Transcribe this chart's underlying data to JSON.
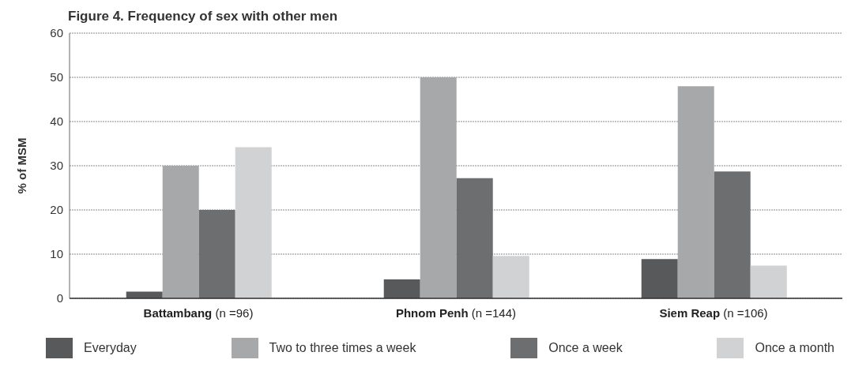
{
  "chart_data": {
    "type": "bar",
    "title": "Figure 4. Frequency of sex with other men",
    "ylabel": "% of MSM",
    "categories": [
      "Battambang (n =96)",
      "Phnom Penh (n =144)",
      "Siem Reap (n =106)"
    ],
    "series": [
      {
        "name": "Everyday",
        "color": "#58595b",
        "values": [
          1.5,
          4.3,
          8.9
        ]
      },
      {
        "name": "Two to three times a week",
        "color": "#a7a8aa",
        "values": [
          30,
          50,
          48
        ]
      },
      {
        "name": "Once a week",
        "color": "#6d6e70",
        "values": [
          20,
          27.2,
          28.7
        ]
      },
      {
        "name": "Once a month",
        "color": "#d1d2d4",
        "values": [
          34.2,
          9.6,
          7.4
        ]
      }
    ],
    "ylim": [
      0,
      60
    ],
    "yticks": [
      0,
      10,
      20,
      30,
      40,
      50,
      60
    ],
    "grid": "y",
    "legend": "bottom"
  }
}
